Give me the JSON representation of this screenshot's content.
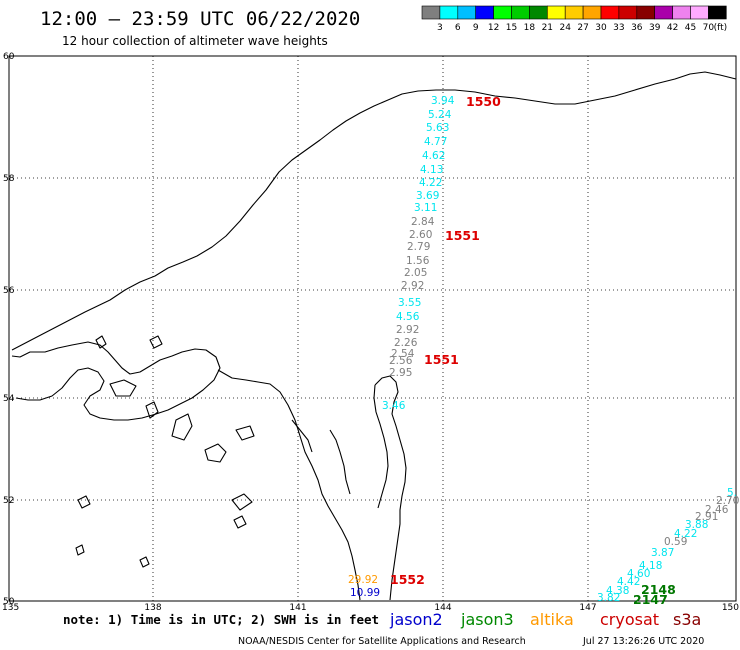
{
  "header": {
    "title": "12:00 – 23:59 UTC 06/22/2020",
    "subtitle": "12 hour collection of altimeter wave heights"
  },
  "color_scale": {
    "labels": [
      "3",
      "6",
      "9",
      "12",
      "15",
      "18",
      "21",
      "24",
      "27",
      "30",
      "33",
      "36",
      "39",
      "42",
      "45",
      "70"
    ],
    "unit": "(ft)",
    "colors": [
      "#7f7f7f",
      "#00ffff",
      "#00bfff",
      "#0000ff",
      "#00ff00",
      "#00cc00",
      "#008800",
      "#ffff00",
      "#ffcc00",
      "#ffa500",
      "#ff0000",
      "#cc0000",
      "#880000",
      "#aa00aa",
      "#ee82ee",
      "#ffaaff",
      "#000000"
    ]
  },
  "map": {
    "lat_labels": [
      "60",
      "58",
      "56",
      "54",
      "52",
      "50"
    ],
    "lon_labels": [
      "135",
      "138",
      "141",
      "144",
      "147",
      "150"
    ]
  },
  "tracks": [
    {
      "id": "track-okhotsk-north",
      "points": [
        {
          "v": "3.94",
          "c": "#00e5ee"
        },
        {
          "v": "5.24",
          "c": "#00e5ee"
        },
        {
          "v": "5.63",
          "c": "#00e5ee"
        },
        {
          "v": "4.77",
          "c": "#00e5ee"
        },
        {
          "v": "4.62",
          "c": "#00e5ee"
        },
        {
          "v": "4.13",
          "c": "#00e5ee"
        },
        {
          "v": "4.22",
          "c": "#00e5ee"
        },
        {
          "v": "3.69",
          "c": "#00e5ee"
        },
        {
          "v": "3.11",
          "c": "#00e5ee"
        },
        {
          "v": "2.84",
          "c": "#7f7f7f"
        },
        {
          "v": "2.60",
          "c": "#7f7f7f"
        },
        {
          "v": "2.79",
          "c": "#7f7f7f"
        },
        {
          "v": "1.56",
          "c": "#7f7f7f"
        },
        {
          "v": "2.05",
          "c": "#7f7f7f"
        },
        {
          "v": "2.92",
          "c": "#7f7f7f"
        },
        {
          "v": "3.55",
          "c": "#00e5ee"
        },
        {
          "v": "4.56",
          "c": "#00e5ee"
        },
        {
          "v": "2.92",
          "c": "#7f7f7f"
        },
        {
          "v": "2.26",
          "c": "#7f7f7f"
        },
        {
          "v": "2.54",
          "c": "#7f7f7f"
        },
        {
          "v": "2.56",
          "c": "#7f7f7f"
        },
        {
          "v": "2.95",
          "c": "#7f7f7f"
        },
        {
          "v": "3.46",
          "c": "#00e5ee"
        }
      ]
    },
    {
      "id": "track-sakhalin-south",
      "points": [
        {
          "v": "29.92",
          "c": "#ff9900"
        },
        {
          "v": "10.99",
          "c": "#0000cc"
        }
      ]
    },
    {
      "id": "track-southeast",
      "points": [
        {
          "v": "5.",
          "c": "#00e5ee"
        },
        {
          "v": "2.70",
          "c": "#7f7f7f"
        },
        {
          "v": "2.46",
          "c": "#7f7f7f"
        },
        {
          "v": "2.91",
          "c": "#7f7f7f"
        },
        {
          "v": "3.88",
          "c": "#00e5ee"
        },
        {
          "v": "4.22",
          "c": "#00e5ee"
        },
        {
          "v": "0.59",
          "c": "#7f7f7f"
        },
        {
          "v": "3.87",
          "c": "#00e5ee"
        },
        {
          "v": "4.18",
          "c": "#00e5ee"
        },
        {
          "v": "4.60",
          "c": "#00e5ee"
        },
        {
          "v": "4.42",
          "c": "#00e5ee"
        },
        {
          "v": "4.38",
          "c": "#00e5ee"
        },
        {
          "v": "3.82",
          "c": "#00e5ee"
        }
      ]
    }
  ],
  "pass_labels": [
    {
      "text": "1550",
      "color": "#dd0000"
    },
    {
      "text": "1551",
      "color": "#dd0000"
    },
    {
      "text": "1551",
      "color": "#dd0000"
    },
    {
      "text": "1552",
      "color": "#dd0000"
    },
    {
      "text": "2148",
      "color": "#007700"
    },
    {
      "text": "2147",
      "color": "#007700"
    }
  ],
  "footer": {
    "note": "note: 1) Time is in UTC; 2) SWH is in feet",
    "legend": [
      {
        "label": "jason2",
        "color": "#0000cc"
      },
      {
        "label": "jason3",
        "color": "#008800"
      },
      {
        "label": "altika",
        "color": "#ff9900"
      },
      {
        "label": "cryosat",
        "color": "#cc0000"
      },
      {
        "label": "s3a",
        "color": "#880000"
      }
    ],
    "credit": "NOAA/NESDIS Center for Satellite Applications and Research",
    "timestamp": "Jul 27 13:26:26 UTC 2020"
  }
}
